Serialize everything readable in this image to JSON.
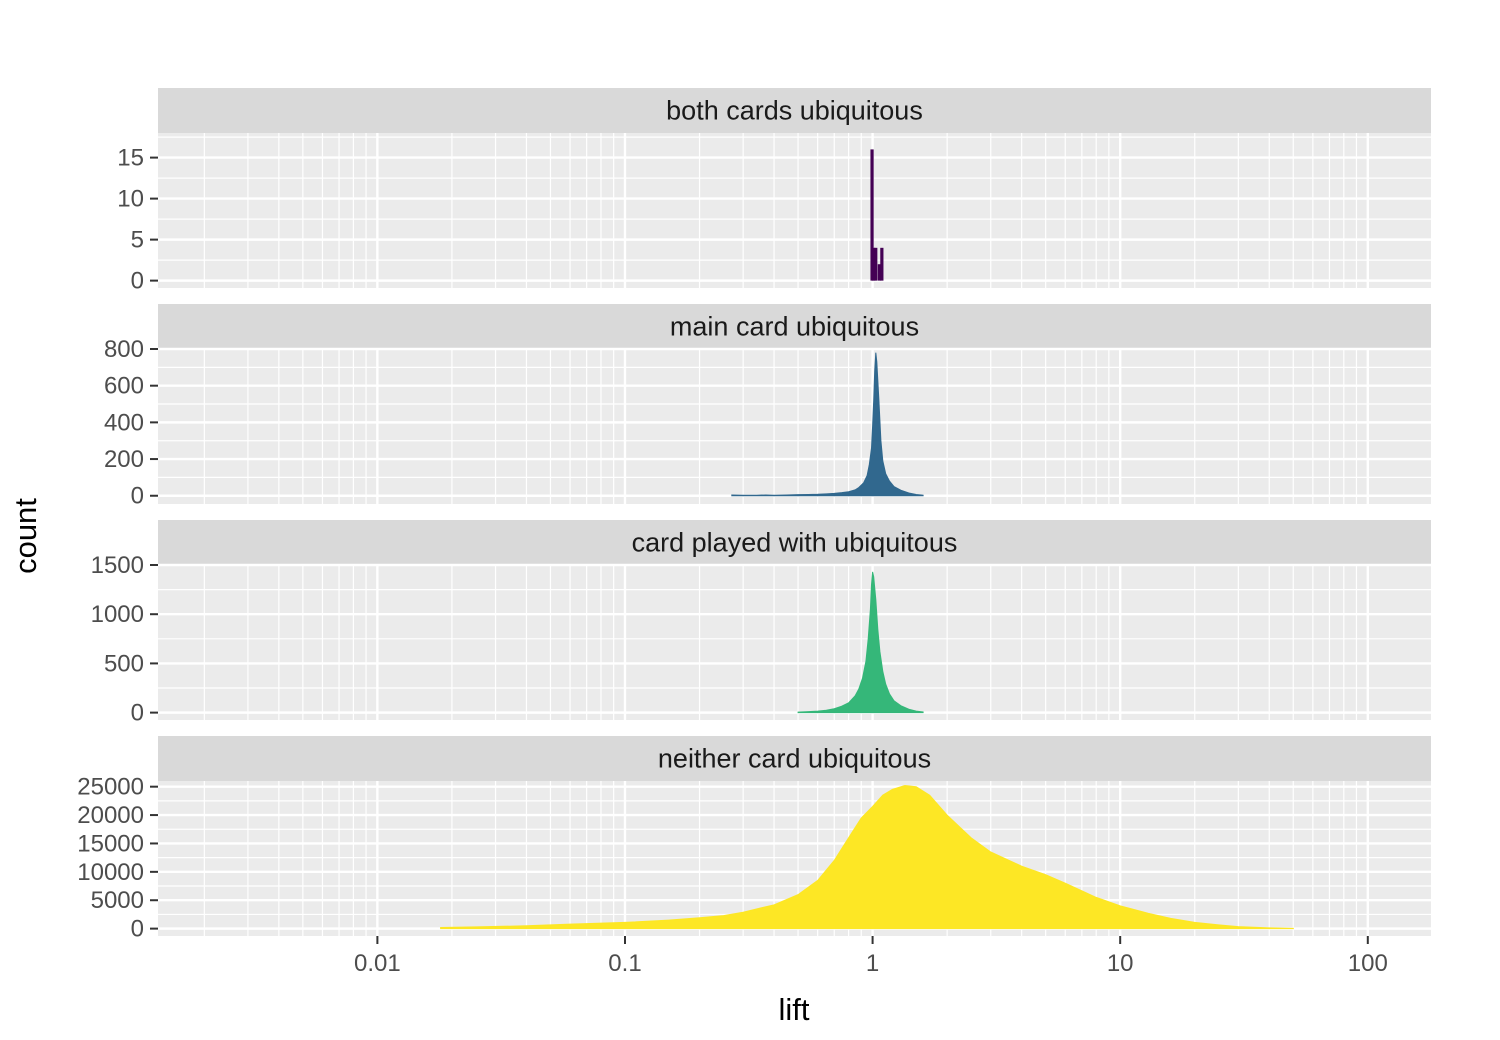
{
  "chart_data": {
    "type": "histogram",
    "xlabel": "lift",
    "ylabel": "count",
    "x_scale": "log10",
    "xlim": [
      0.0013,
      180
    ],
    "x_ticks": [
      {
        "value": 0.01,
        "label": "0.01"
      },
      {
        "value": 0.1,
        "label": "0.1"
      },
      {
        "value": 1,
        "label": "1"
      },
      {
        "value": 10,
        "label": "10"
      },
      {
        "value": 100,
        "label": "100"
      }
    ],
    "grid": true,
    "legend": "none",
    "facets": [
      {
        "title": "both cards ubiquitous",
        "color": "#440154",
        "ylim": [
          -0.9,
          18
        ],
        "y_ticks": [
          {
            "value": 0,
            "label": "0"
          },
          {
            "value": 5,
            "label": "5"
          },
          {
            "value": 10,
            "label": "10"
          },
          {
            "value": 15,
            "label": "15"
          }
        ],
        "points": [
          [
            0.995,
            16
          ],
          [
            1.01,
            4
          ],
          [
            1.03,
            4
          ],
          [
            1.065,
            2
          ],
          [
            1.09,
            4
          ]
        ]
      },
      {
        "title": "main card ubiquitous",
        "color": "#31688E",
        "ylim": [
          -45,
          800
        ],
        "y_ticks": [
          {
            "value": 0,
            "label": "0"
          },
          {
            "value": 200,
            "label": "200"
          },
          {
            "value": 400,
            "label": "400"
          },
          {
            "value": 600,
            "label": "600"
          },
          {
            "value": 800,
            "label": "800"
          }
        ],
        "points": [
          [
            0.27,
            4
          ],
          [
            0.3,
            3
          ],
          [
            0.34,
            3
          ],
          [
            0.37,
            4
          ],
          [
            0.4,
            3
          ],
          [
            0.45,
            4
          ],
          [
            0.5,
            6
          ],
          [
            0.55,
            7
          ],
          [
            0.6,
            8
          ],
          [
            0.65,
            10
          ],
          [
            0.7,
            13
          ],
          [
            0.75,
            17
          ],
          [
            0.8,
            22
          ],
          [
            0.85,
            32
          ],
          [
            0.88,
            45
          ],
          [
            0.92,
            70
          ],
          [
            0.95,
            110
          ],
          [
            0.97,
            170
          ],
          [
            0.99,
            260
          ],
          [
            1.0,
            380
          ],
          [
            1.01,
            520
          ],
          [
            1.02,
            680
          ],
          [
            1.03,
            780
          ],
          [
            1.04,
            730
          ],
          [
            1.06,
            520
          ],
          [
            1.08,
            300
          ],
          [
            1.1,
            190
          ],
          [
            1.13,
            120
          ],
          [
            1.17,
            80
          ],
          [
            1.22,
            50
          ],
          [
            1.3,
            30
          ],
          [
            1.4,
            15
          ],
          [
            1.5,
            7
          ],
          [
            1.6,
            3
          ]
        ]
      },
      {
        "title": "card played with ubiquitous",
        "color": "#35B779",
        "ylim": [
          -75,
          1500
        ],
        "y_ticks": [
          {
            "value": 0,
            "label": "0"
          },
          {
            "value": 500,
            "label": "500"
          },
          {
            "value": 1000,
            "label": "1000"
          },
          {
            "value": 1500,
            "label": "1500"
          }
        ],
        "points": [
          [
            0.5,
            5
          ],
          [
            0.55,
            10
          ],
          [
            0.6,
            15
          ],
          [
            0.65,
            25
          ],
          [
            0.7,
            40
          ],
          [
            0.75,
            65
          ],
          [
            0.8,
            100
          ],
          [
            0.85,
            170
          ],
          [
            0.88,
            240
          ],
          [
            0.91,
            350
          ],
          [
            0.94,
            520
          ],
          [
            0.96,
            750
          ],
          [
            0.98,
            1050
          ],
          [
            0.99,
            1300
          ],
          [
            1.0,
            1430
          ],
          [
            1.01,
            1380
          ],
          [
            1.03,
            1150
          ],
          [
            1.05,
            850
          ],
          [
            1.07,
            620
          ],
          [
            1.1,
            420
          ],
          [
            1.13,
            290
          ],
          [
            1.17,
            190
          ],
          [
            1.22,
            120
          ],
          [
            1.3,
            70
          ],
          [
            1.4,
            35
          ],
          [
            1.5,
            15
          ],
          [
            1.6,
            6
          ]
        ]
      },
      {
        "title": "neither card ubiquitous",
        "color": "#FDE725",
        "ylim": [
          -1300,
          26000
        ],
        "y_ticks": [
          {
            "value": 0,
            "label": "0"
          },
          {
            "value": 5000,
            "label": "5000"
          },
          {
            "value": 10000,
            "label": "10000"
          },
          {
            "value": 15000,
            "label": "15000"
          },
          {
            "value": 20000,
            "label": "20000"
          },
          {
            "value": 25000,
            "label": "25000"
          }
        ],
        "points": [
          [
            0.018,
            200
          ],
          [
            0.025,
            300
          ],
          [
            0.04,
            500
          ],
          [
            0.06,
            800
          ],
          [
            0.1,
            1100
          ],
          [
            0.15,
            1500
          ],
          [
            0.2,
            1900
          ],
          [
            0.25,
            2300
          ],
          [
            0.3,
            2900
          ],
          [
            0.4,
            4200
          ],
          [
            0.5,
            6000
          ],
          [
            0.6,
            8500
          ],
          [
            0.7,
            12000
          ],
          [
            0.8,
            16000
          ],
          [
            0.9,
            19500
          ],
          [
            1.0,
            21500
          ],
          [
            1.1,
            23500
          ],
          [
            1.2,
            24500
          ],
          [
            1.35,
            25200
          ],
          [
            1.5,
            25000
          ],
          [
            1.7,
            23500
          ],
          [
            2.0,
            20000
          ],
          [
            2.5,
            16000
          ],
          [
            3.0,
            13500
          ],
          [
            4.0,
            11000
          ],
          [
            5.0,
            9500
          ],
          [
            6.0,
            8000
          ],
          [
            8.0,
            5500
          ],
          [
            10.0,
            4000
          ],
          [
            13.0,
            2700
          ],
          [
            16.0,
            1800
          ],
          [
            20.0,
            1100
          ],
          [
            25.0,
            650
          ],
          [
            30.0,
            350
          ],
          [
            40.0,
            120
          ],
          [
            50.0,
            30
          ]
        ]
      }
    ]
  }
}
